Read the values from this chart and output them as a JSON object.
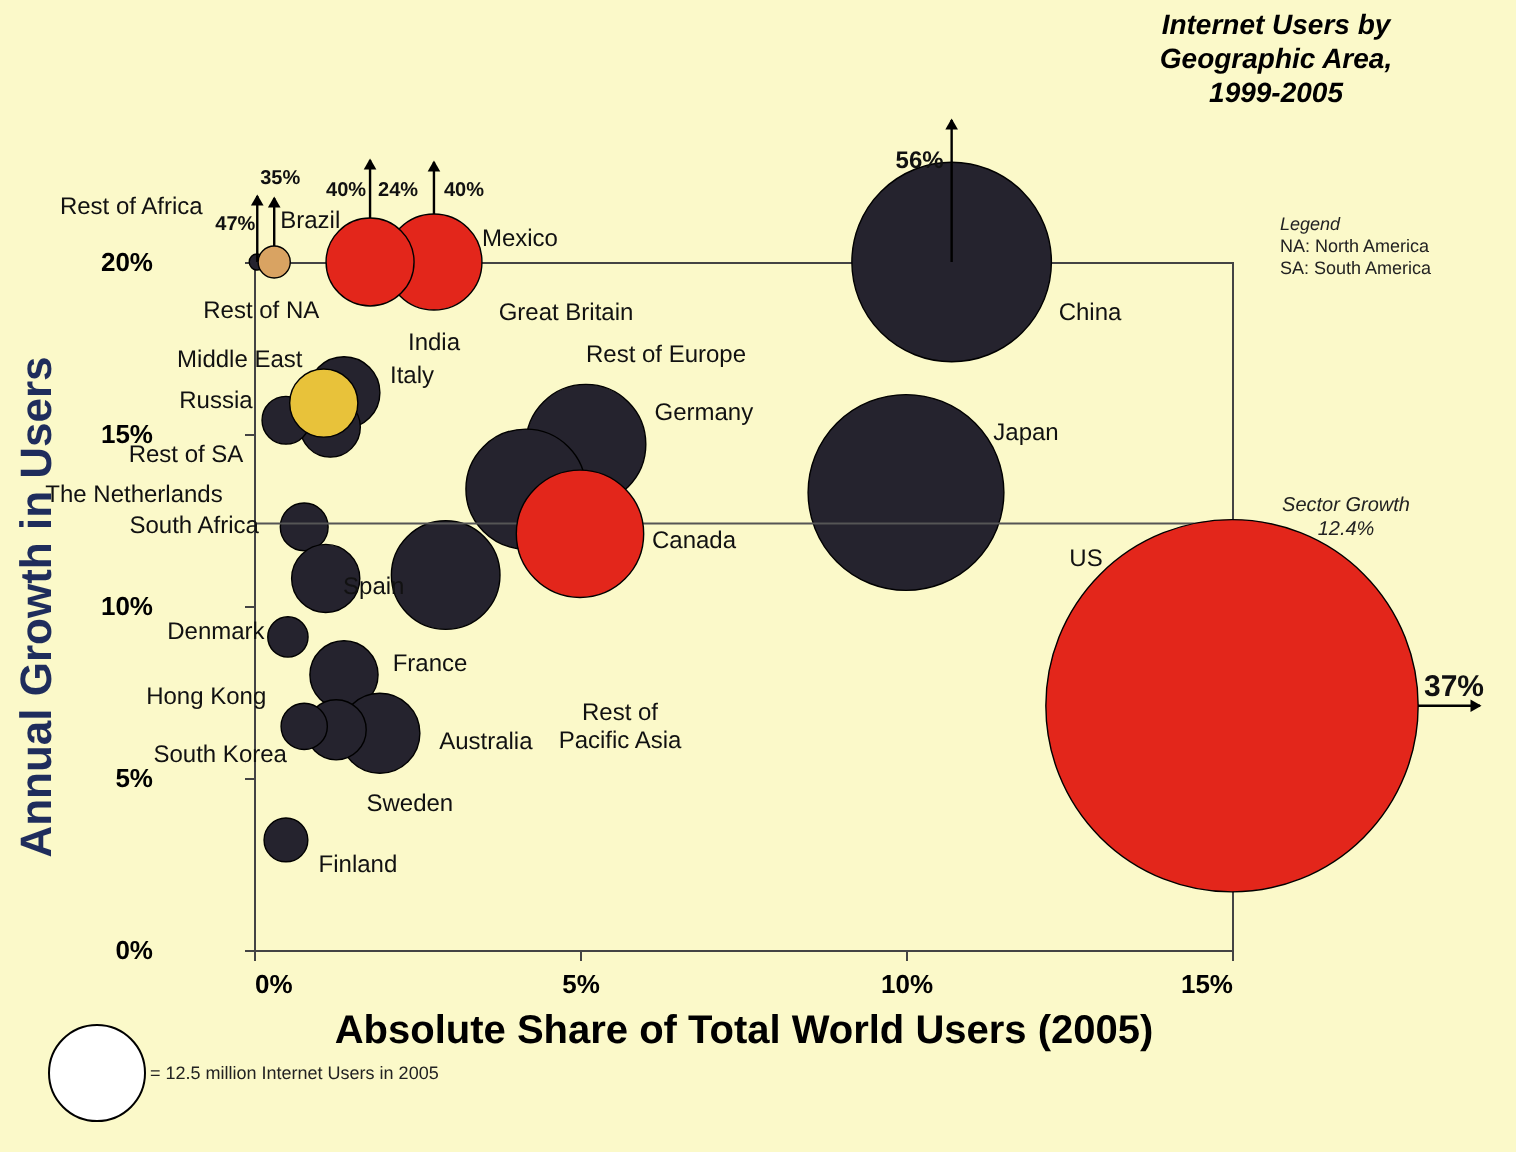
{
  "chart_data": {
    "type": "bubble",
    "title": "Internet Users by Geographic Area, 1999-2005",
    "xlabel": "Absolute Share of Total World Users (2005)",
    "ylabel": "Annual Growth in Users",
    "xlim": [
      0,
      15
    ],
    "ylim": [
      0,
      20
    ],
    "xticks": [
      {
        "value": 0,
        "label": "0%"
      },
      {
        "value": 5,
        "label": "5%"
      },
      {
        "value": 10,
        "label": "10%"
      },
      {
        "value": 15,
        "label": "15%"
      }
    ],
    "yticks": [
      {
        "value": 0,
        "label": "0%"
      },
      {
        "value": 5,
        "label": "5%"
      },
      {
        "value": 10,
        "label": "10%"
      },
      {
        "value": 15,
        "label": "15%"
      },
      {
        "value": 20,
        "label": "20%"
      }
    ],
    "size_legend": [
      {
        "value": 12.5,
        "label": "= 12.5 million Internet Users in 2005"
      }
    ],
    "series": [
      {
        "color": "#25232e",
        "x": [
          10.7,
          10.0,
          5.09,
          4.17,
          2.94,
          1.38,
          1.17,
          0.49,
          0.77,
          1.1,
          0.52,
          1.38,
          1.93,
          1.26,
          0.77,
          0.49,
          0.05
        ],
        "values": [
          20,
          13.3,
          14.7,
          13.4,
          10.9,
          16.2,
          15.2,
          15.4,
          12.3,
          10.8,
          9.1,
          8.0,
          6.3,
          6.4,
          6.5,
          3.2,
          20
        ],
        "sizes": [
          54,
          52,
          19.5,
          19.5,
          16,
          7.0,
          4.9,
          3.1,
          3.1,
          6.3,
          2.2,
          6.3,
          8.7,
          4.9,
          2.9,
          2.6,
          0.35
        ]
      },
      {
        "color": "#e3261b",
        "x": [
          15.0,
          5.0,
          2.76,
          1.78
        ],
        "values": [
          7.1,
          12.1,
          20,
          20
        ],
        "sizes": [
          188,
          22,
          12.5,
          10.5
        ]
      },
      {
        "color": "#e8c23a",
        "x": [
          1.07
        ],
        "values": [
          15.9
        ],
        "sizes": [
          6.3
        ]
      },
      {
        "color": "#d9a362",
        "x": [
          0.31
        ],
        "values": [
          20
        ],
        "sizes": [
          1.4
        ]
      }
    ],
    "ref_lines": [
      {
        "axis": "y",
        "value": 12.4,
        "label": "Sector Growth 12.4%",
        "color": "#555555"
      }
    ],
    "annotations": [
      {
        "text": "Rest of Africa",
        "x": 0.05,
        "y": 20
      },
      {
        "text": "Brazil",
        "x": 0.31,
        "y": 20
      },
      {
        "text": "Rest of NA",
        "x": 0.05,
        "y": 20
      },
      {
        "text": "Mexico",
        "x": 2.76,
        "y": 20
      },
      "Great Britain",
      "India",
      {
        "text": "Italy",
        "x": 1.38,
        "y": 16.2
      },
      {
        "text": "Middle East",
        "x": 1.07,
        "y": 15.9
      },
      {
        "text": "Russia",
        "x": 0.49,
        "y": 15.4
      },
      "Rest of Europe",
      {
        "text": "Germany",
        "x": 5.09,
        "y": 14.7
      },
      "Rest of SA",
      "The Netherlands",
      {
        "text": "South Africa",
        "x": 0.77,
        "y": 12.3
      },
      {
        "text": "Spain",
        "x": 1.1,
        "y": 10.8
      },
      {
        "text": "Canada",
        "x": 5.0,
        "y": 12.1
      },
      {
        "text": "Denmark",
        "x": 0.52,
        "y": 9.1
      },
      {
        "text": "France",
        "x": 1.38,
        "y": 8.0
      },
      {
        "text": "Hong Kong",
        "x": 0.77,
        "y": 6.5
      },
      {
        "text": "South Korea",
        "x": 0.77,
        "y": 6.5
      },
      {
        "text": "Australia",
        "x": 1.93,
        "y": 6.3
      },
      "Rest of Pacific Asia",
      {
        "text": "Sweden",
        "x": 1.93,
        "y": 6.3
      },
      {
        "text": "Finland",
        "x": 0.49,
        "y": 3.2
      },
      "China",
      "Japan",
      "US",
      {
        "text": "47%",
        "x": 0.05,
        "y": 20
      },
      {
        "text": "35%",
        "x": 0.31,
        "y": 20
      },
      {
        "text": "40%",
        "x": 1.78,
        "y": 20
      },
      {
        "text": "24%",
        "x": 1.78,
        "y": 20
      },
      {
        "text": "40%",
        "x": 2.76,
        "y": 20
      },
      {
        "text": "56%",
        "x": 10.7,
        "y": 20
      },
      {
        "text": "37%",
        "x": 15.0,
        "y": 7.1
      },
      "Legend",
      "NA: North America",
      "SA: South America"
    ]
  }
}
